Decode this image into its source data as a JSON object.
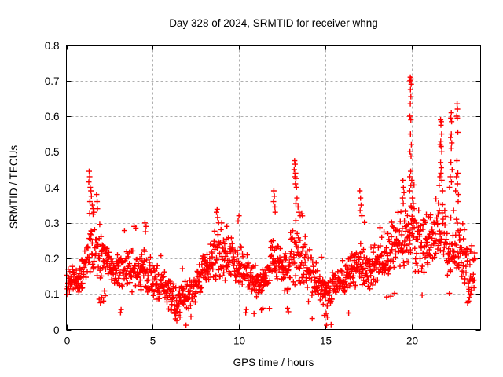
{
  "chart_data": {
    "type": "scatter",
    "title": "Day 328 of 2024, SRMTID for receiver whng",
    "xlabel": "GPS time / hours",
    "ylabel": "SRMTID / TECUs",
    "xlim": [
      0,
      24
    ],
    "ylim": [
      0,
      0.8
    ],
    "xtick_values": [
      0,
      5,
      10,
      15,
      20
    ],
    "xtick_labels": [
      "0",
      "5",
      "10",
      "15",
      "20"
    ],
    "ytick_values": [
      0,
      0.1,
      0.2,
      0.3,
      0.4,
      0.5,
      0.6,
      0.7,
      0.8
    ],
    "ytick_labels": [
      "0",
      "0.1",
      "0.2",
      "0.3",
      "0.4",
      "0.5",
      "0.6",
      "0.7",
      "0.8"
    ],
    "grid": true,
    "legend": "none",
    "marker": {
      "shape": "plus",
      "color": "#ff0000",
      "size": 7
    },
    "frame_color": "#000000",
    "grid_color": "#b0b0b0",
    "background": "#ffffff",
    "points_per_hour": 58,
    "random_seed": 1234,
    "cloud_envelope": [
      [
        0.0,
        0.09,
        0.17
      ],
      [
        0.5,
        0.1,
        0.19
      ],
      [
        1.0,
        0.1,
        0.21
      ],
      [
        1.2,
        0.12,
        0.28
      ],
      [
        1.4,
        0.16,
        0.4
      ],
      [
        1.6,
        0.15,
        0.36
      ],
      [
        1.8,
        0.13,
        0.3
      ],
      [
        2.0,
        0.14,
        0.27
      ],
      [
        2.4,
        0.14,
        0.26
      ],
      [
        2.8,
        0.12,
        0.23
      ],
      [
        3.2,
        0.11,
        0.24
      ],
      [
        3.6,
        0.1,
        0.24
      ],
      [
        4.0,
        0.1,
        0.23
      ],
      [
        4.4,
        0.1,
        0.25
      ],
      [
        4.7,
        0.09,
        0.26
      ],
      [
        5.0,
        0.08,
        0.2
      ],
      [
        5.5,
        0.07,
        0.18
      ],
      [
        6.0,
        0.05,
        0.16
      ],
      [
        6.4,
        0.03,
        0.14
      ],
      [
        6.8,
        0.04,
        0.15
      ],
      [
        7.2,
        0.06,
        0.16
      ],
      [
        7.6,
        0.08,
        0.18
      ],
      [
        8.0,
        0.1,
        0.23
      ],
      [
        8.5,
        0.12,
        0.29
      ],
      [
        8.9,
        0.12,
        0.31
      ],
      [
        9.3,
        0.13,
        0.28
      ],
      [
        9.7,
        0.13,
        0.28
      ],
      [
        10.0,
        0.12,
        0.26
      ],
      [
        10.4,
        0.1,
        0.22
      ],
      [
        10.8,
        0.08,
        0.2
      ],
      [
        11.2,
        0.08,
        0.19
      ],
      [
        11.6,
        0.1,
        0.22
      ],
      [
        12.0,
        0.12,
        0.29
      ],
      [
        12.4,
        0.12,
        0.27
      ],
      [
        12.8,
        0.09,
        0.24
      ],
      [
        13.2,
        0.12,
        0.33
      ],
      [
        13.6,
        0.12,
        0.3
      ],
      [
        14.0,
        0.1,
        0.26
      ],
      [
        14.4,
        0.08,
        0.21
      ],
      [
        14.8,
        0.06,
        0.18
      ],
      [
        15.2,
        0.06,
        0.16
      ],
      [
        15.6,
        0.08,
        0.18
      ],
      [
        16.0,
        0.09,
        0.2
      ],
      [
        16.4,
        0.1,
        0.22
      ],
      [
        16.8,
        0.1,
        0.24
      ],
      [
        17.2,
        0.1,
        0.27
      ],
      [
        17.6,
        0.1,
        0.24
      ],
      [
        18.0,
        0.12,
        0.26
      ],
      [
        18.4,
        0.13,
        0.29
      ],
      [
        18.8,
        0.15,
        0.32
      ],
      [
        19.2,
        0.15,
        0.34
      ],
      [
        19.6,
        0.16,
        0.36
      ],
      [
        20.0,
        0.17,
        0.38
      ],
      [
        20.4,
        0.15,
        0.36
      ],
      [
        20.8,
        0.15,
        0.34
      ],
      [
        21.2,
        0.16,
        0.37
      ],
      [
        21.6,
        0.16,
        0.4
      ],
      [
        22.0,
        0.14,
        0.35
      ],
      [
        22.4,
        0.13,
        0.36
      ],
      [
        22.8,
        0.13,
        0.34
      ],
      [
        23.2,
        0.1,
        0.31
      ],
      [
        23.5,
        0.09,
        0.28
      ],
      [
        23.7,
        0.08,
        0.26
      ]
    ],
    "peak_points": [
      [
        1.32,
        0.445
      ],
      [
        1.35,
        0.43
      ],
      [
        1.3,
        0.415
      ],
      [
        1.38,
        0.4
      ],
      [
        1.42,
        0.39
      ],
      [
        1.45,
        0.375
      ],
      [
        1.36,
        0.36
      ],
      [
        1.5,
        0.35
      ],
      [
        1.55,
        0.34
      ],
      [
        1.6,
        0.33
      ],
      [
        1.75,
        0.38
      ],
      [
        1.78,
        0.36
      ],
      [
        1.8,
        0.34
      ],
      [
        1.9,
        0.085
      ],
      [
        1.97,
        0.075
      ],
      [
        2.05,
        0.09
      ],
      [
        2.15,
        0.08
      ],
      [
        2.25,
        0.095
      ],
      [
        3.92,
        0.29
      ],
      [
        4.02,
        0.285
      ],
      [
        4.55,
        0.3
      ],
      [
        4.62,
        0.29
      ],
      [
        4.58,
        0.275
      ],
      [
        6.25,
        0.045
      ],
      [
        6.32,
        0.03
      ],
      [
        6.4,
        0.025
      ],
      [
        6.48,
        0.04
      ],
      [
        6.58,
        0.035
      ],
      [
        8.7,
        0.33
      ],
      [
        8.76,
        0.315
      ],
      [
        8.82,
        0.3
      ],
      [
        9.0,
        0.3
      ],
      [
        9.3,
        0.29
      ],
      [
        9.95,
        0.305
      ],
      [
        10.0,
        0.32
      ],
      [
        11.3,
        0.055
      ],
      [
        11.38,
        0.06
      ],
      [
        12.02,
        0.39
      ],
      [
        12.05,
        0.375
      ],
      [
        12.0,
        0.36
      ],
      [
        12.08,
        0.345
      ],
      [
        12.1,
        0.33
      ],
      [
        12.8,
        0.06
      ],
      [
        12.87,
        0.05
      ],
      [
        13.22,
        0.475
      ],
      [
        13.25,
        0.465
      ],
      [
        13.2,
        0.45
      ],
      [
        13.28,
        0.44
      ],
      [
        13.24,
        0.43
      ],
      [
        13.3,
        0.425
      ],
      [
        13.27,
        0.41
      ],
      [
        13.33,
        0.4
      ],
      [
        13.36,
        0.37
      ],
      [
        13.3,
        0.355
      ],
      [
        13.42,
        0.345
      ],
      [
        13.48,
        0.33
      ],
      [
        13.55,
        0.32
      ],
      [
        14.95,
        0.04
      ],
      [
        15.05,
        0.045
      ],
      [
        15.12,
        0.035
      ],
      [
        17.0,
        0.39
      ],
      [
        17.04,
        0.37
      ],
      [
        17.08,
        0.35
      ],
      [
        17.02,
        0.335
      ],
      [
        17.12,
        0.32
      ],
      [
        19.5,
        0.42
      ],
      [
        19.53,
        0.4
      ],
      [
        19.56,
        0.385
      ],
      [
        19.48,
        0.37
      ],
      [
        19.52,
        0.355
      ],
      [
        19.93,
        0.71
      ],
      [
        19.97,
        0.705
      ],
      [
        19.91,
        0.7
      ],
      [
        19.98,
        0.69
      ],
      [
        19.94,
        0.675
      ],
      [
        19.96,
        0.655
      ],
      [
        19.93,
        0.635
      ],
      [
        19.9,
        0.6
      ],
      [
        19.96,
        0.59
      ],
      [
        19.94,
        0.55
      ],
      [
        19.99,
        0.52
      ],
      [
        19.91,
        0.5
      ],
      [
        19.97,
        0.488
      ],
      [
        19.95,
        0.445
      ],
      [
        19.9,
        0.43
      ],
      [
        20.01,
        0.42
      ],
      [
        19.96,
        0.405
      ],
      [
        19.89,
        0.39
      ],
      [
        20.05,
        0.37
      ],
      [
        20.1,
        0.355
      ],
      [
        20.15,
        0.34
      ],
      [
        21.68,
        0.59
      ],
      [
        21.72,
        0.585
      ],
      [
        21.7,
        0.575
      ],
      [
        21.74,
        0.55
      ],
      [
        21.69,
        0.53
      ],
      [
        21.66,
        0.52
      ],
      [
        21.71,
        0.515
      ],
      [
        21.75,
        0.5
      ],
      [
        21.68,
        0.47
      ],
      [
        21.72,
        0.455
      ],
      [
        21.7,
        0.44
      ],
      [
        21.65,
        0.43
      ],
      [
        21.76,
        0.42
      ],
      [
        21.6,
        0.405
      ],
      [
        21.8,
        0.39
      ],
      [
        22.3,
        0.61
      ],
      [
        22.28,
        0.595
      ],
      [
        22.32,
        0.585
      ],
      [
        22.3,
        0.55
      ],
      [
        22.27,
        0.54
      ],
      [
        22.33,
        0.525
      ],
      [
        22.3,
        0.51
      ],
      [
        22.28,
        0.47
      ],
      [
        22.35,
        0.45
      ],
      [
        22.24,
        0.43
      ],
      [
        22.31,
        0.415
      ],
      [
        22.2,
        0.4
      ],
      [
        22.64,
        0.635
      ],
      [
        22.66,
        0.62
      ],
      [
        22.62,
        0.6
      ],
      [
        22.65,
        0.595
      ],
      [
        22.68,
        0.555
      ],
      [
        22.63,
        0.475
      ],
      [
        22.68,
        0.44
      ],
      [
        22.6,
        0.43
      ],
      [
        22.66,
        0.41
      ],
      [
        22.55,
        0.39
      ],
      [
        22.72,
        0.38
      ],
      [
        22.7,
        0.36
      ],
      [
        23.3,
        0.08
      ],
      [
        23.36,
        0.09
      ],
      [
        23.42,
        0.1
      ],
      [
        23.25,
        0.075
      ]
    ]
  }
}
